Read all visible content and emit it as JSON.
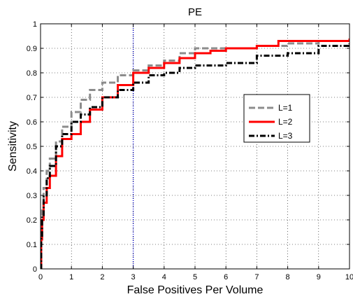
{
  "chart_data": {
    "type": "line",
    "title": "PE",
    "xlabel": "False Positives Per Volume",
    "ylabel": "Sensitivity",
    "xlim": [
      0,
      10
    ],
    "ylim": [
      0,
      1
    ],
    "xticks": [
      0,
      1,
      2,
      3,
      4,
      5,
      6,
      7,
      8,
      9,
      10
    ],
    "xtick_labels": [
      "0",
      "1",
      "2",
      "3",
      "4",
      "5",
      "6",
      "7",
      "8",
      "9",
      "10"
    ],
    "yticks": [
      0,
      0.1,
      0.2,
      0.3,
      0.4,
      0.5,
      0.6,
      0.7,
      0.8,
      0.9,
      1
    ],
    "ytick_labels": [
      "0",
      "0.1",
      "0.2",
      "0.3",
      "0.4",
      "0.5",
      "0.6",
      "0.7",
      "0.8",
      "0.9",
      "1"
    ],
    "grid": true,
    "legend_position": "right",
    "reference_line": {
      "x": 3,
      "color": "#0000cc",
      "style": "dotted"
    },
    "series": [
      {
        "name": "L=1",
        "color": "#8c8c8c",
        "style": "dashed",
        "x": [
          0,
          0.02,
          0.05,
          0.1,
          0.2,
          0.3,
          0.5,
          0.7,
          1.0,
          1.3,
          1.6,
          2.0,
          2.5,
          3.0,
          3.5,
          4.0,
          4.5,
          5.0,
          6.0,
          7.0,
          8.0,
          9.0,
          10.0
        ],
        "y": [
          0,
          0.15,
          0.25,
          0.33,
          0.4,
          0.45,
          0.52,
          0.58,
          0.64,
          0.69,
          0.73,
          0.76,
          0.79,
          0.81,
          0.83,
          0.85,
          0.88,
          0.9,
          0.9,
          0.91,
          0.92,
          0.93,
          0.93
        ]
      },
      {
        "name": "L=2",
        "color": "#ff0000",
        "style": "solid",
        "x": [
          0,
          0.02,
          0.05,
          0.1,
          0.2,
          0.3,
          0.5,
          0.7,
          1.0,
          1.3,
          1.6,
          2.0,
          2.5,
          3.0,
          3.5,
          4.0,
          4.5,
          5.0,
          5.5,
          6.0,
          7.0,
          7.7,
          8.0,
          9.0,
          10.0
        ],
        "y": [
          0,
          0.12,
          0.2,
          0.27,
          0.33,
          0.38,
          0.46,
          0.53,
          0.55,
          0.6,
          0.65,
          0.7,
          0.75,
          0.8,
          0.82,
          0.84,
          0.86,
          0.88,
          0.89,
          0.9,
          0.91,
          0.93,
          0.93,
          0.93,
          0.94
        ]
      },
      {
        "name": "L=3",
        "color": "#000000",
        "style": "dashdot",
        "x": [
          0,
          0.02,
          0.05,
          0.1,
          0.2,
          0.3,
          0.5,
          0.7,
          1.0,
          1.3,
          1.6,
          2.0,
          2.5,
          3.0,
          3.5,
          4.0,
          4.5,
          5.0,
          6.0,
          7.0,
          8.0,
          9.0,
          10.0
        ],
        "y": [
          0,
          0.13,
          0.22,
          0.3,
          0.37,
          0.42,
          0.5,
          0.55,
          0.6,
          0.63,
          0.66,
          0.7,
          0.73,
          0.76,
          0.79,
          0.8,
          0.82,
          0.83,
          0.84,
          0.87,
          0.88,
          0.91,
          0.92
        ]
      }
    ]
  }
}
